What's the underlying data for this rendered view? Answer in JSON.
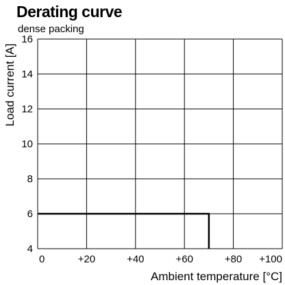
{
  "chart_data": {
    "type": "line",
    "title": "Derating curve",
    "subtitle": "dense packing",
    "xlabel": "Ambient temperature [°C]",
    "ylabel": "Load current [A]",
    "xlim": [
      0,
      100
    ],
    "ylim": [
      4,
      16
    ],
    "x_ticks": [
      0,
      20,
      40,
      60,
      80,
      100
    ],
    "x_tick_labels": [
      "0",
      "+20",
      "+40",
      "+60",
      "+80",
      "+100"
    ],
    "y_ticks": [
      4,
      6,
      8,
      10,
      12,
      14,
      16
    ],
    "y_tick_labels": [
      "4",
      "6",
      "8",
      "10",
      "12",
      "14",
      "16"
    ],
    "grid": true,
    "series": [
      {
        "x": [
          0,
          70,
          70
        ],
        "y": [
          6,
          6,
          4
        ]
      }
    ]
  }
}
